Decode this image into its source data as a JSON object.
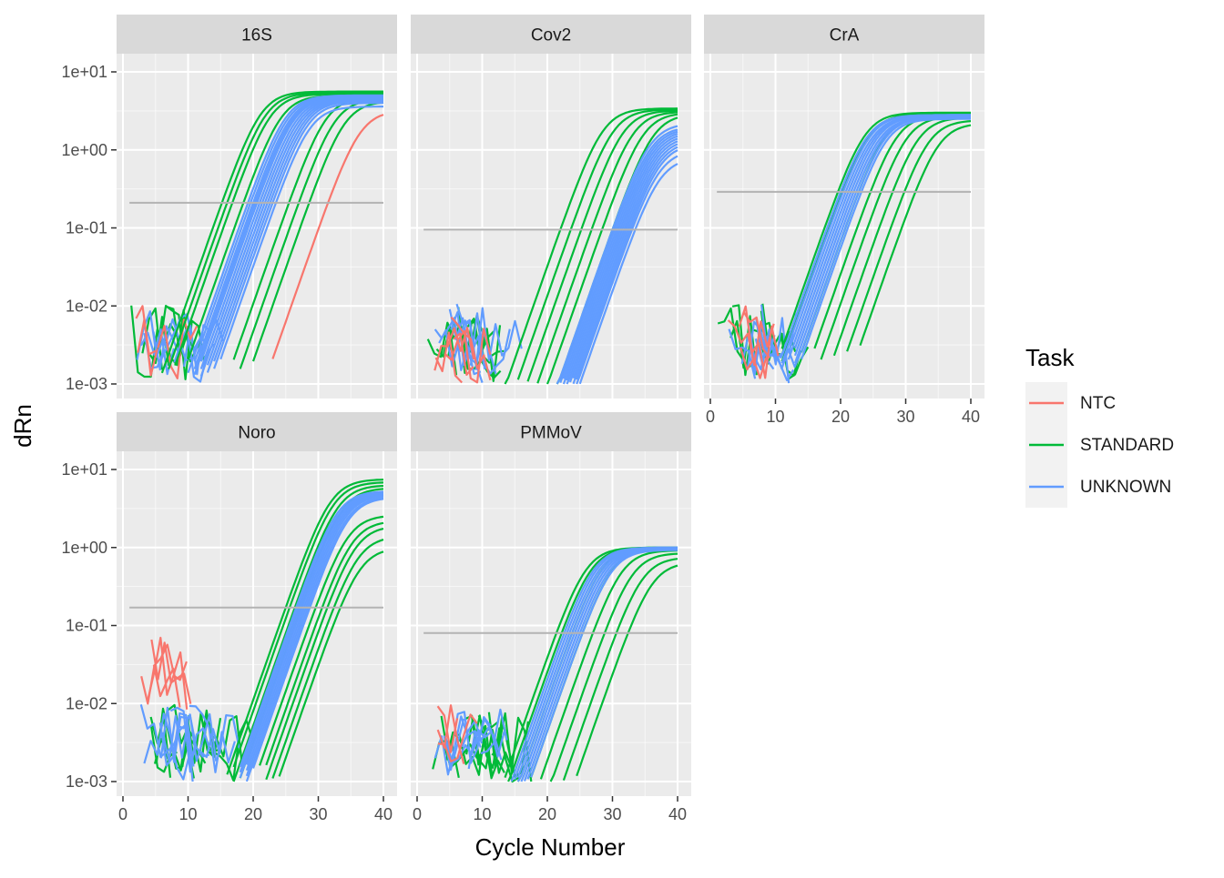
{
  "chart_data": {
    "type": "line",
    "layout": "faceted 3 columns x 2 rows, shared axes, log y scale",
    "xlabel": "Cycle Number",
    "ylabel": "dRn",
    "xlim": [
      0,
      41
    ],
    "x_ticks": [
      0,
      10,
      20,
      30,
      40
    ],
    "x_tick_labels": [
      "0",
      "10",
      "20",
      "30",
      "40"
    ],
    "ylim": [
      0.001,
      12
    ],
    "y_scale": "log10",
    "y_ticks": [
      0.001,
      0.01,
      0.1,
      1,
      10
    ],
    "y_tick_labels": [
      "1e-03",
      "1e-02",
      "1e-01",
      "1e+00",
      "1e+01"
    ],
    "grid": true,
    "legend": {
      "title": "Task",
      "placement": "right",
      "entries": [
        {
          "label": "NTC",
          "color": "#F8766D"
        },
        {
          "label": "STANDARD",
          "color": "#00BA38"
        },
        {
          "label": "UNKNOWN",
          "color": "#619CFF"
        }
      ]
    },
    "colors": {
      "panel_bg": "#EBEBEB",
      "strip_bg": "#D9D9D9",
      "grid": "#FFFFFF",
      "threshold": "#B3B3B3",
      "axis_text": "#4D4D4D"
    },
    "facets": [
      {
        "name": "16S",
        "threshold": 0.21,
        "series": {
          "STANDARD": {
            "ct": [
              15.2,
              16.0,
              16.8,
              18.5,
              25.5,
              27.0,
              28.6
            ],
            "plateau": [
              5.6,
              5.4,
              5.2,
              5.0,
              4.8,
              4.5,
              4.2
            ],
            "start": [
              1,
              2,
              3,
              4,
              5,
              6
            ]
          },
          "UNKNOWN": {
            "ct": [
              19.2,
              19.6,
              20.0,
              20.3,
              20.6,
              21.0,
              21.4,
              21.8,
              22.2,
              22.6,
              23.0,
              23.5
            ],
            "plateau": [
              5.0,
              4.9,
              4.8,
              4.7,
              4.7,
              4.6,
              4.5,
              4.4,
              4.3,
              4.2,
              4.0,
              3.6
            ],
            "start": [
              1,
              2,
              3,
              4,
              5,
              6,
              7,
              8
            ]
          },
          "NTC": {
            "ct": [
              31.5
            ],
            "plateau": [
              3.2
            ],
            "start": [
              1,
              2,
              3
            ]
          }
        }
      },
      {
        "name": "Cov2",
        "threshold": 0.095,
        "series": {
          "STANDARD": {
            "ct": [
              22.0,
              23.6,
              25.2,
              26.8,
              28.4,
              30.0
            ],
            "plateau": [
              3.4,
              3.3,
              3.2,
              3.1,
              3.0,
              2.9
            ],
            "start": [
              1,
              2,
              3,
              4,
              5,
              6,
              7
            ]
          },
          "UNKNOWN": {
            "ct": [
              30.0,
              30.3,
              30.6,
              30.9,
              31.2,
              31.5,
              31.8,
              32.1,
              32.4,
              32.7,
              33.0,
              33.5
            ],
            "plateau": [
              2.2,
              2.0,
              1.9,
              1.8,
              1.7,
              1.6,
              1.5,
              1.4,
              1.3,
              1.2,
              1.0,
              0.8
            ],
            "start": [
              1,
              2,
              3,
              4,
              5,
              6,
              7,
              8
            ]
          },
          "NTC": {
            "ct": [],
            "plateau": [],
            "start": [
              1,
              2,
              3,
              4,
              5
            ]
          }
        }
      },
      {
        "name": "CrA",
        "threshold": 0.29,
        "series": {
          "STANDARD": {
            "ct": [
              19.6,
              20.3,
              22.8,
              24.6,
              26.2,
              28.0,
              29.8,
              31.5
            ],
            "plateau": [
              3.0,
              2.9,
              2.8,
              2.8,
              2.7,
              2.6,
              2.4,
              2.2
            ],
            "start": [
              1,
              2,
              3,
              4,
              5,
              6
            ]
          },
          "UNKNOWN": {
            "ct": [
              20.0,
              20.4,
              20.8,
              21.2,
              21.6,
              22.0,
              22.4,
              22.8,
              23.2
            ],
            "plateau": [
              2.8,
              2.8,
              2.7,
              2.7,
              2.7,
              2.6,
              2.6,
              2.6,
              2.5
            ],
            "start": [
              1,
              2,
              3,
              4,
              5,
              6,
              7,
              8
            ]
          },
          "NTC": {
            "ct": [],
            "plateau": [],
            "start": [
              1,
              2,
              3,
              4
            ]
          }
        }
      },
      {
        "name": "Noro",
        "threshold": 0.17,
        "series": {
          "STANDARD": {
            "ct": [
              25.0,
              25.6,
              26.4,
              27.2,
              29.6,
              30.6,
              31.4,
              32.4,
              33.4
            ],
            "plateau": [
              7.5,
              6.9,
              6.3,
              5.8,
              2.6,
              2.2,
              1.9,
              1.4,
              1.0
            ],
            "start": [
              2,
              3,
              4,
              5,
              6,
              7,
              8,
              9,
              10,
              11
            ]
          },
          "UNKNOWN": {
            "ct": [
              26.6,
              26.9,
              27.2,
              27.5,
              27.8,
              28.1,
              28.4,
              28.7
            ],
            "plateau": [
              5.3,
              5.1,
              5.0,
              4.9,
              4.8,
              4.7,
              4.5,
              4.4
            ],
            "start": [
              1,
              2,
              3,
              4,
              5,
              6,
              7,
              8,
              9,
              10
            ]
          },
          "NTC": {
            "ct": [],
            "plateau": [],
            "start": [
              1,
              2,
              3,
              4
            ]
          }
        }
      },
      {
        "name": "PMMoV",
        "threshold": 0.08,
        "series": {
          "STANDARD": {
            "ct": [
              21.4,
              22.2,
              23.8,
              25.4,
              27.0,
              28.8,
              30.6,
              32.4
            ],
            "plateau": [
              1.0,
              1.0,
              0.98,
              0.95,
              0.92,
              0.85,
              0.75,
              0.65
            ],
            "start": [
              1,
              2,
              3,
              4,
              5,
              6,
              7,
              8,
              9,
              10
            ]
          },
          "UNKNOWN": {
            "ct": [
              22.6,
              23.0,
              23.4,
              23.8,
              24.2,
              24.6,
              25.0,
              25.4
            ],
            "plateau": [
              1.0,
              1.0,
              0.98,
              0.97,
              0.96,
              0.95,
              0.94,
              0.93
            ],
            "start": [
              1,
              2,
              3,
              4,
              5,
              6,
              7,
              8
            ]
          },
          "NTC": {
            "ct": [],
            "plateau": [],
            "start": [
              1,
              2,
              3
            ]
          }
        }
      }
    ]
  }
}
